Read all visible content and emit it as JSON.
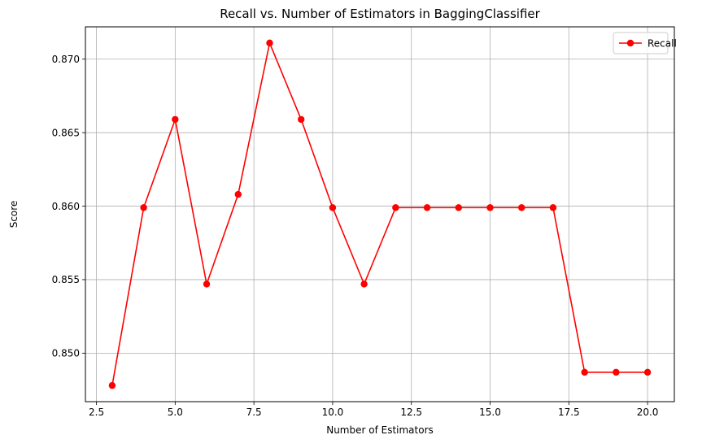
{
  "chart_data": {
    "type": "line",
    "title": "Recall vs. Number of Estimators in BaggingClassifier",
    "xlabel": "Number of Estimators",
    "ylabel": "Score",
    "xlim": [
      2.15,
      20.85
    ],
    "ylim": [
      0.8467,
      0.8722
    ],
    "xticks": [
      2.5,
      5.0,
      7.5,
      10.0,
      12.5,
      15.0,
      17.5,
      20.0
    ],
    "xtick_labels": [
      "2.5",
      "5.0",
      "7.5",
      "10.0",
      "12.5",
      "15.0",
      "17.5",
      "20.0"
    ],
    "yticks": [
      0.85,
      0.855,
      0.86,
      0.865,
      0.87
    ],
    "ytick_labels": [
      "0.850",
      "0.855",
      "0.860",
      "0.865",
      "0.870"
    ],
    "grid": true,
    "legend_position": "top-right",
    "series": [
      {
        "name": "Recall",
        "color": "#ff0000",
        "marker": "circle",
        "x": [
          3,
          4,
          5,
          6,
          7,
          8,
          9,
          10,
          11,
          12,
          13,
          14,
          15,
          16,
          17,
          18,
          19,
          20
        ],
        "y": [
          0.8478,
          0.8599,
          0.8659,
          0.8547,
          0.8608,
          0.8711,
          0.8659,
          0.8599,
          0.8547,
          0.8599,
          0.8599,
          0.8599,
          0.8599,
          0.8599,
          0.8599,
          0.8487,
          0.8487,
          0.8487
        ]
      }
    ]
  }
}
